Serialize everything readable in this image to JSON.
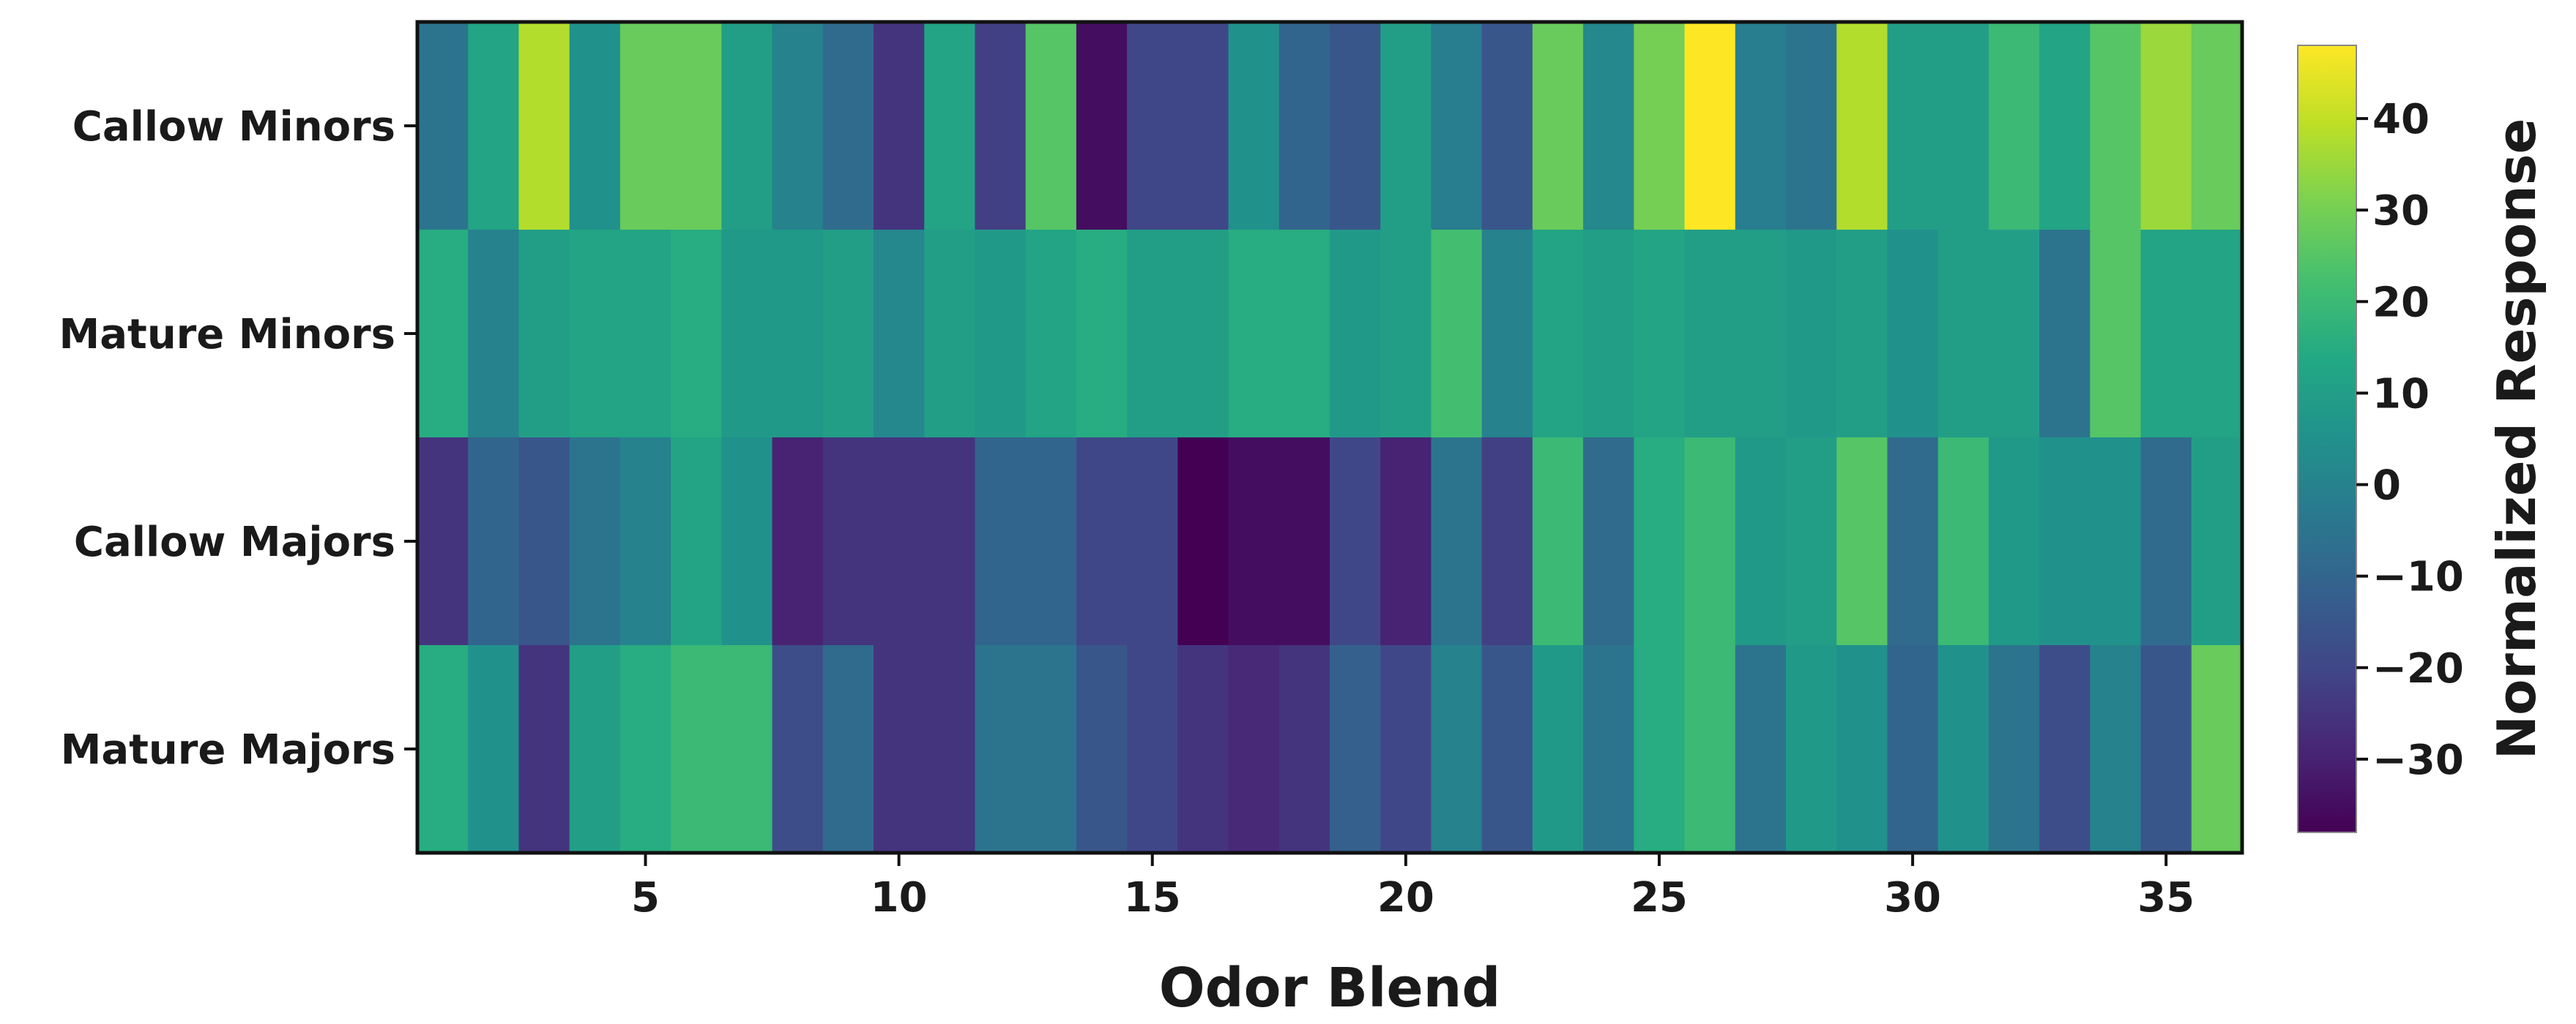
{
  "chart_data": {
    "type": "heatmap",
    "title": "",
    "xlabel": "Odor Blend",
    "ylabel": "",
    "colorbar_label": "Normalized Response",
    "colormap": "viridis",
    "vmin": -38,
    "vmax": 48,
    "x_ticks": [
      5,
      10,
      15,
      20,
      25,
      30,
      35
    ],
    "colorbar_ticks": [
      40,
      30,
      20,
      10,
      0,
      -10,
      -20,
      -30
    ],
    "x": [
      1,
      2,
      3,
      4,
      5,
      6,
      7,
      8,
      9,
      10,
      11,
      12,
      13,
      14,
      15,
      16,
      17,
      18,
      19,
      20,
      21,
      22,
      23,
      24,
      25,
      26,
      27,
      28,
      29,
      30,
      31,
      32,
      33,
      34,
      35,
      36
    ],
    "rows": [
      "Callow Minors",
      "Mature Minors",
      "Callow Majors",
      "Mature Majors"
    ],
    "values": [
      [
        -5,
        12,
        38,
        5,
        28,
        28,
        10,
        0,
        -8,
        -25,
        12,
        -22,
        25,
        -35,
        -20,
        -20,
        5,
        -10,
        -15,
        10,
        -2,
        -15,
        28,
        2,
        30,
        48,
        -2,
        -5,
        38,
        10,
        10,
        20,
        12,
        25,
        35,
        28
      ],
      [
        15,
        0,
        10,
        12,
        12,
        15,
        8,
        8,
        10,
        2,
        10,
        8,
        12,
        15,
        10,
        10,
        15,
        15,
        8,
        10,
        22,
        0,
        12,
        10,
        12,
        10,
        10,
        8,
        10,
        5,
        10,
        10,
        -5,
        25,
        12,
        12
      ],
      [
        -25,
        -10,
        -15,
        -5,
        0,
        12,
        5,
        -30,
        -25,
        -25,
        -25,
        -10,
        -10,
        -20,
        -20,
        -38,
        -35,
        -35,
        -20,
        -30,
        -5,
        -22,
        20,
        -8,
        15,
        20,
        8,
        10,
        25,
        -8,
        20,
        8,
        5,
        5,
        -8,
        10
      ],
      [
        15,
        5,
        -25,
        10,
        15,
        20,
        20,
        -18,
        -8,
        -25,
        -25,
        -5,
        -5,
        -15,
        -20,
        -25,
        -28,
        -25,
        -12,
        -20,
        0,
        -15,
        8,
        -5,
        15,
        20,
        -5,
        8,
        5,
        -10,
        5,
        -5,
        -18,
        0,
        -15,
        28
      ]
    ]
  }
}
